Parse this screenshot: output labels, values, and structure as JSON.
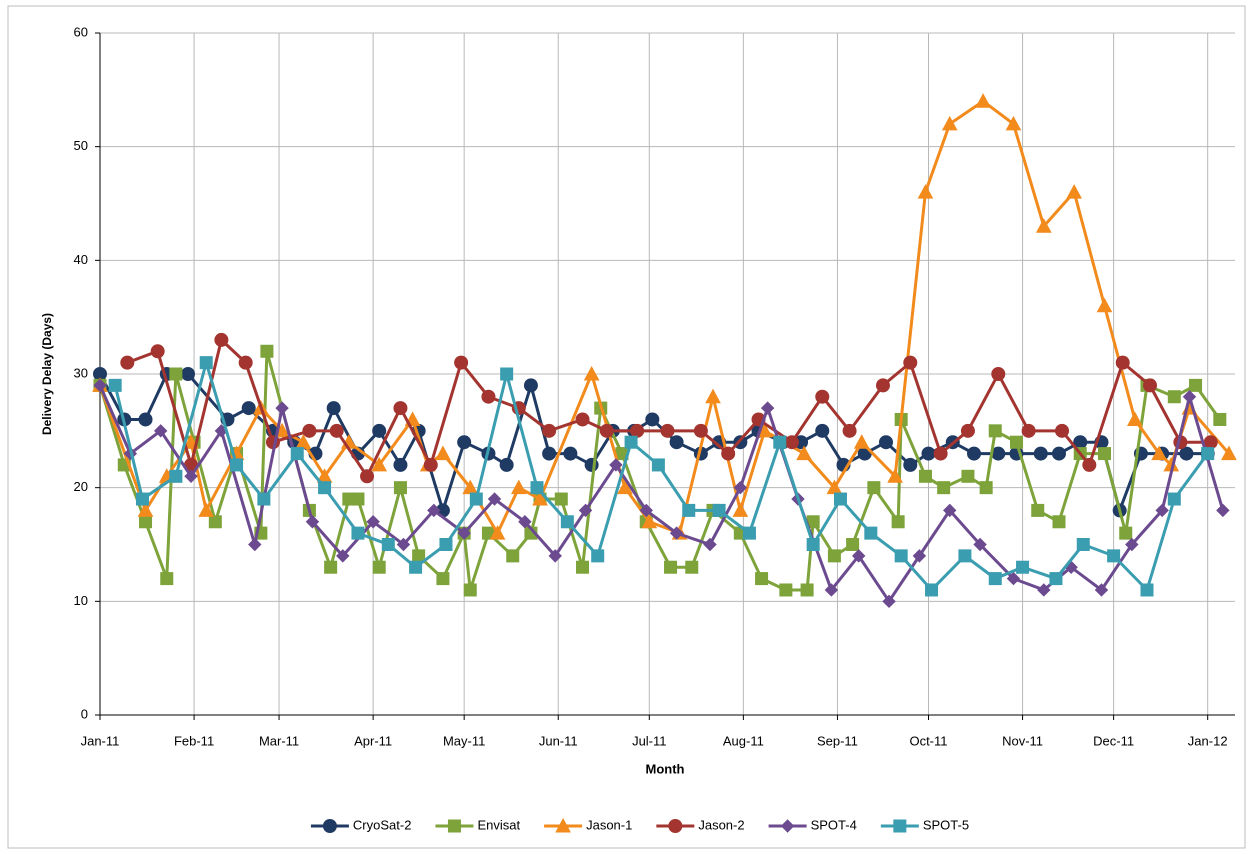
{
  "chart_data": {
    "type": "line",
    "x_label": "Month",
    "y_label": "Delivery Delay (Days)",
    "xlim": [
      0,
      374
    ],
    "ylim": [
      0,
      60
    ],
    "xticks": [
      {
        "value": 0,
        "label": "Jan-11"
      },
      {
        "value": 31,
        "label": "Feb-11"
      },
      {
        "value": 59,
        "label": "Mar-11"
      },
      {
        "value": 90,
        "label": "Apr-11"
      },
      {
        "value": 120,
        "label": "May-11"
      },
      {
        "value": 151,
        "label": "Jun-11"
      },
      {
        "value": 181,
        "label": "Jul-11"
      },
      {
        "value": 212,
        "label": "Aug-11"
      },
      {
        "value": 243,
        "label": "Sep-11"
      },
      {
        "value": 273,
        "label": "Oct-11"
      },
      {
        "value": 304,
        "label": "Nov-11"
      },
      {
        "value": 334,
        "label": "Dec-11"
      },
      {
        "value": 365,
        "label": "Jan-12"
      }
    ],
    "yticks": [
      0,
      10,
      20,
      30,
      40,
      50,
      60
    ],
    "grid": true,
    "legend": "bottom",
    "series": [
      {
        "name": "CryoSat-2",
        "color": "#1f3a63",
        "marker": "circle",
        "x": [
          0,
          8,
          15,
          22,
          29,
          42,
          49,
          57,
          64,
          71,
          77,
          85,
          92,
          99,
          105,
          113,
          120,
          128,
          134,
          142,
          148,
          155,
          162,
          169,
          176,
          182,
          190,
          198,
          204,
          211,
          217,
          225,
          231,
          238,
          245,
          252,
          259,
          267,
          273,
          281,
          288,
          296,
          302,
          310,
          316,
          323,
          330,
          336,
          343,
          350,
          358,
          365
        ],
        "values": [
          30,
          26,
          26,
          30,
          30,
          26,
          27,
          25,
          24,
          23,
          27,
          23,
          25,
          22,
          25,
          18,
          24,
          23,
          22,
          29,
          23,
          23,
          22,
          25,
          25,
          26,
          24,
          23,
          24,
          24,
          25,
          24,
          24,
          25,
          22,
          23,
          24,
          22,
          23,
          24,
          23,
          23,
          23,
          23,
          23,
          24,
          24,
          18,
          23,
          23,
          23,
          23
        ]
      },
      {
        "name": "Envisat",
        "color": "#7da33a",
        "marker": "square",
        "x": [
          0,
          8,
          15,
          22,
          25,
          31,
          38,
          45,
          53,
          55,
          69,
          76,
          82,
          85,
          92,
          99,
          105,
          113,
          120,
          122,
          128,
          136,
          142,
          145,
          152,
          159,
          165,
          172,
          180,
          188,
          195,
          202,
          211,
          218,
          226,
          233,
          235,
          242,
          248,
          255,
          263,
          264,
          272,
          278,
          286,
          292,
          295,
          302,
          309,
          316,
          323,
          331,
          338,
          345,
          354,
          361,
          369
        ],
        "values": [
          29,
          22,
          17,
          12,
          30,
          24,
          17,
          23,
          16,
          32,
          18,
          13,
          19,
          19,
          13,
          20,
          14,
          12,
          16,
          11,
          16,
          14,
          16,
          19,
          19,
          13,
          27,
          23,
          17,
          13,
          13,
          18,
          16,
          12,
          11,
          11,
          17,
          14,
          15,
          20,
          17,
          26,
          21,
          20,
          21,
          20,
          25,
          24,
          18,
          17,
          23,
          23,
          16,
          29,
          28,
          29,
          26
        ]
      },
      {
        "name": "Jason-1",
        "color": "#f28a1c",
        "marker": "triangle",
        "x": [
          0,
          15,
          22,
          30,
          35,
          45,
          53,
          60,
          67,
          74,
          82,
          92,
          103,
          108,
          113,
          122,
          131,
          138,
          145,
          162,
          173,
          181,
          191,
          202,
          211,
          219,
          232,
          242,
          251,
          262,
          272,
          280,
          291,
          301,
          311,
          321,
          331,
          341,
          349,
          353,
          359,
          372
        ],
        "values": [
          29,
          18,
          21,
          24,
          18,
          23,
          27,
          25,
          24,
          21,
          24,
          22,
          26,
          22,
          23,
          20,
          16,
          20,
          19,
          30,
          20,
          17,
          16,
          28,
          18,
          25,
          23,
          20,
          24,
          21,
          46,
          52,
          54,
          52,
          43,
          46,
          36,
          26,
          23,
          22,
          27,
          23
        ]
      },
      {
        "name": "Jason-2",
        "color": "#a3342f",
        "marker": "circle",
        "x": [
          9,
          19,
          30,
          40,
          48,
          57,
          69,
          78,
          88,
          99,
          109,
          119,
          128,
          138,
          148,
          159,
          167,
          177,
          187,
          198,
          207,
          217,
          228,
          238,
          247,
          258,
          267,
          277,
          286,
          296,
          306,
          317,
          326,
          337,
          346,
          356,
          366
        ],
        "values": [
          31,
          32,
          22,
          33,
          31,
          24,
          25,
          25,
          21,
          27,
          22,
          31,
          28,
          27,
          25,
          26,
          25,
          25,
          25,
          25,
          23,
          26,
          24,
          28,
          25,
          29,
          31,
          23,
          25,
          30,
          25,
          25,
          22,
          31,
          29,
          24,
          24
        ]
      },
      {
        "name": "SPOT-4",
        "color": "#6c4a8f",
        "marker": "diamond",
        "x": [
          0,
          10,
          20,
          30,
          40,
          51,
          60,
          70,
          80,
          90,
          100,
          110,
          120,
          130,
          140,
          150,
          160,
          170,
          180,
          190,
          201,
          211,
          220,
          230,
          241,
          250,
          260,
          270,
          280,
          290,
          301,
          311,
          320,
          330,
          340,
          350,
          359,
          370
        ],
        "values": [
          29,
          23,
          25,
          21,
          25,
          15,
          27,
          17,
          14,
          17,
          15,
          18,
          16,
          19,
          17,
          14,
          18,
          22,
          18,
          16,
          15,
          20,
          27,
          19,
          11,
          14,
          10,
          14,
          18,
          15,
          12,
          11,
          13,
          11,
          15,
          18,
          28,
          18
        ]
      },
      {
        "name": "SPOT-5",
        "color": "#3a9db0",
        "marker": "square",
        "x": [
          5,
          14,
          25,
          35,
          45,
          54,
          65,
          74,
          85,
          95,
          104,
          114,
          124,
          134,
          144,
          154,
          164,
          175,
          184,
          194,
          204,
          214,
          224,
          235,
          244,
          254,
          264,
          274,
          285,
          295,
          304,
          315,
          324,
          334,
          345,
          354,
          365
        ],
        "values": [
          29,
          19,
          21,
          31,
          22,
          19,
          23,
          20,
          16,
          15,
          13,
          15,
          19,
          30,
          20,
          17,
          14,
          24,
          22,
          18,
          18,
          16,
          24,
          15,
          19,
          16,
          14,
          11,
          14,
          12,
          13,
          12,
          15,
          14,
          11,
          19,
          23
        ]
      }
    ]
  }
}
